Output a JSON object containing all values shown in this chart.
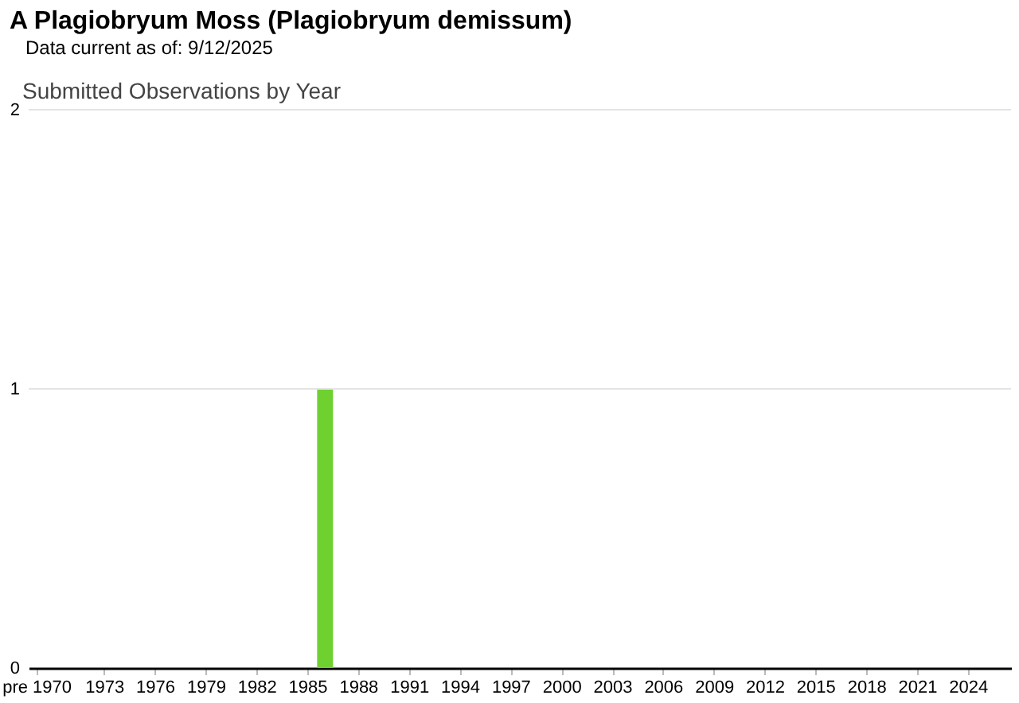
{
  "chart_data": {
    "type": "bar",
    "title": "A Plagiobryum Moss   (Plagiobryum demissum)",
    "subtitle": "Data current as of: 9/12/2025",
    "annotations": [
      "Submitted Observations by Year"
    ],
    "categories": [
      "pre 1970",
      null,
      null,
      null,
      "1973",
      null,
      null,
      "1976",
      null,
      null,
      "1979",
      null,
      null,
      "1982",
      null,
      null,
      "1985",
      null,
      null,
      "1988",
      null,
      null,
      "1991",
      null,
      null,
      "1994",
      null,
      null,
      "1997",
      null,
      null,
      "2000",
      null,
      null,
      "2003",
      null,
      null,
      "2006",
      null,
      null,
      "2009",
      null,
      null,
      "2012",
      null,
      null,
      "2015",
      null,
      null,
      "2018",
      null,
      null,
      "2021",
      null,
      null,
      "2024",
      null,
      null
    ],
    "values": [
      0,
      0,
      0,
      0,
      0,
      0,
      0,
      0,
      0,
      0,
      0,
      0,
      0,
      0,
      0,
      0,
      0,
      1,
      0,
      0,
      0,
      0,
      0,
      0,
      0,
      0,
      0,
      0,
      0,
      0,
      0,
      0,
      0,
      0,
      0,
      0,
      0,
      0,
      0,
      0,
      0,
      0,
      0,
      0,
      0,
      0,
      0,
      0,
      0,
      0,
      0,
      0,
      0,
      0,
      0,
      0,
      0,
      0
    ],
    "color": "#6fd12f",
    "ylim": [
      0,
      2
    ],
    "yticks": [
      0,
      1,
      2
    ],
    "grid": "y"
  }
}
